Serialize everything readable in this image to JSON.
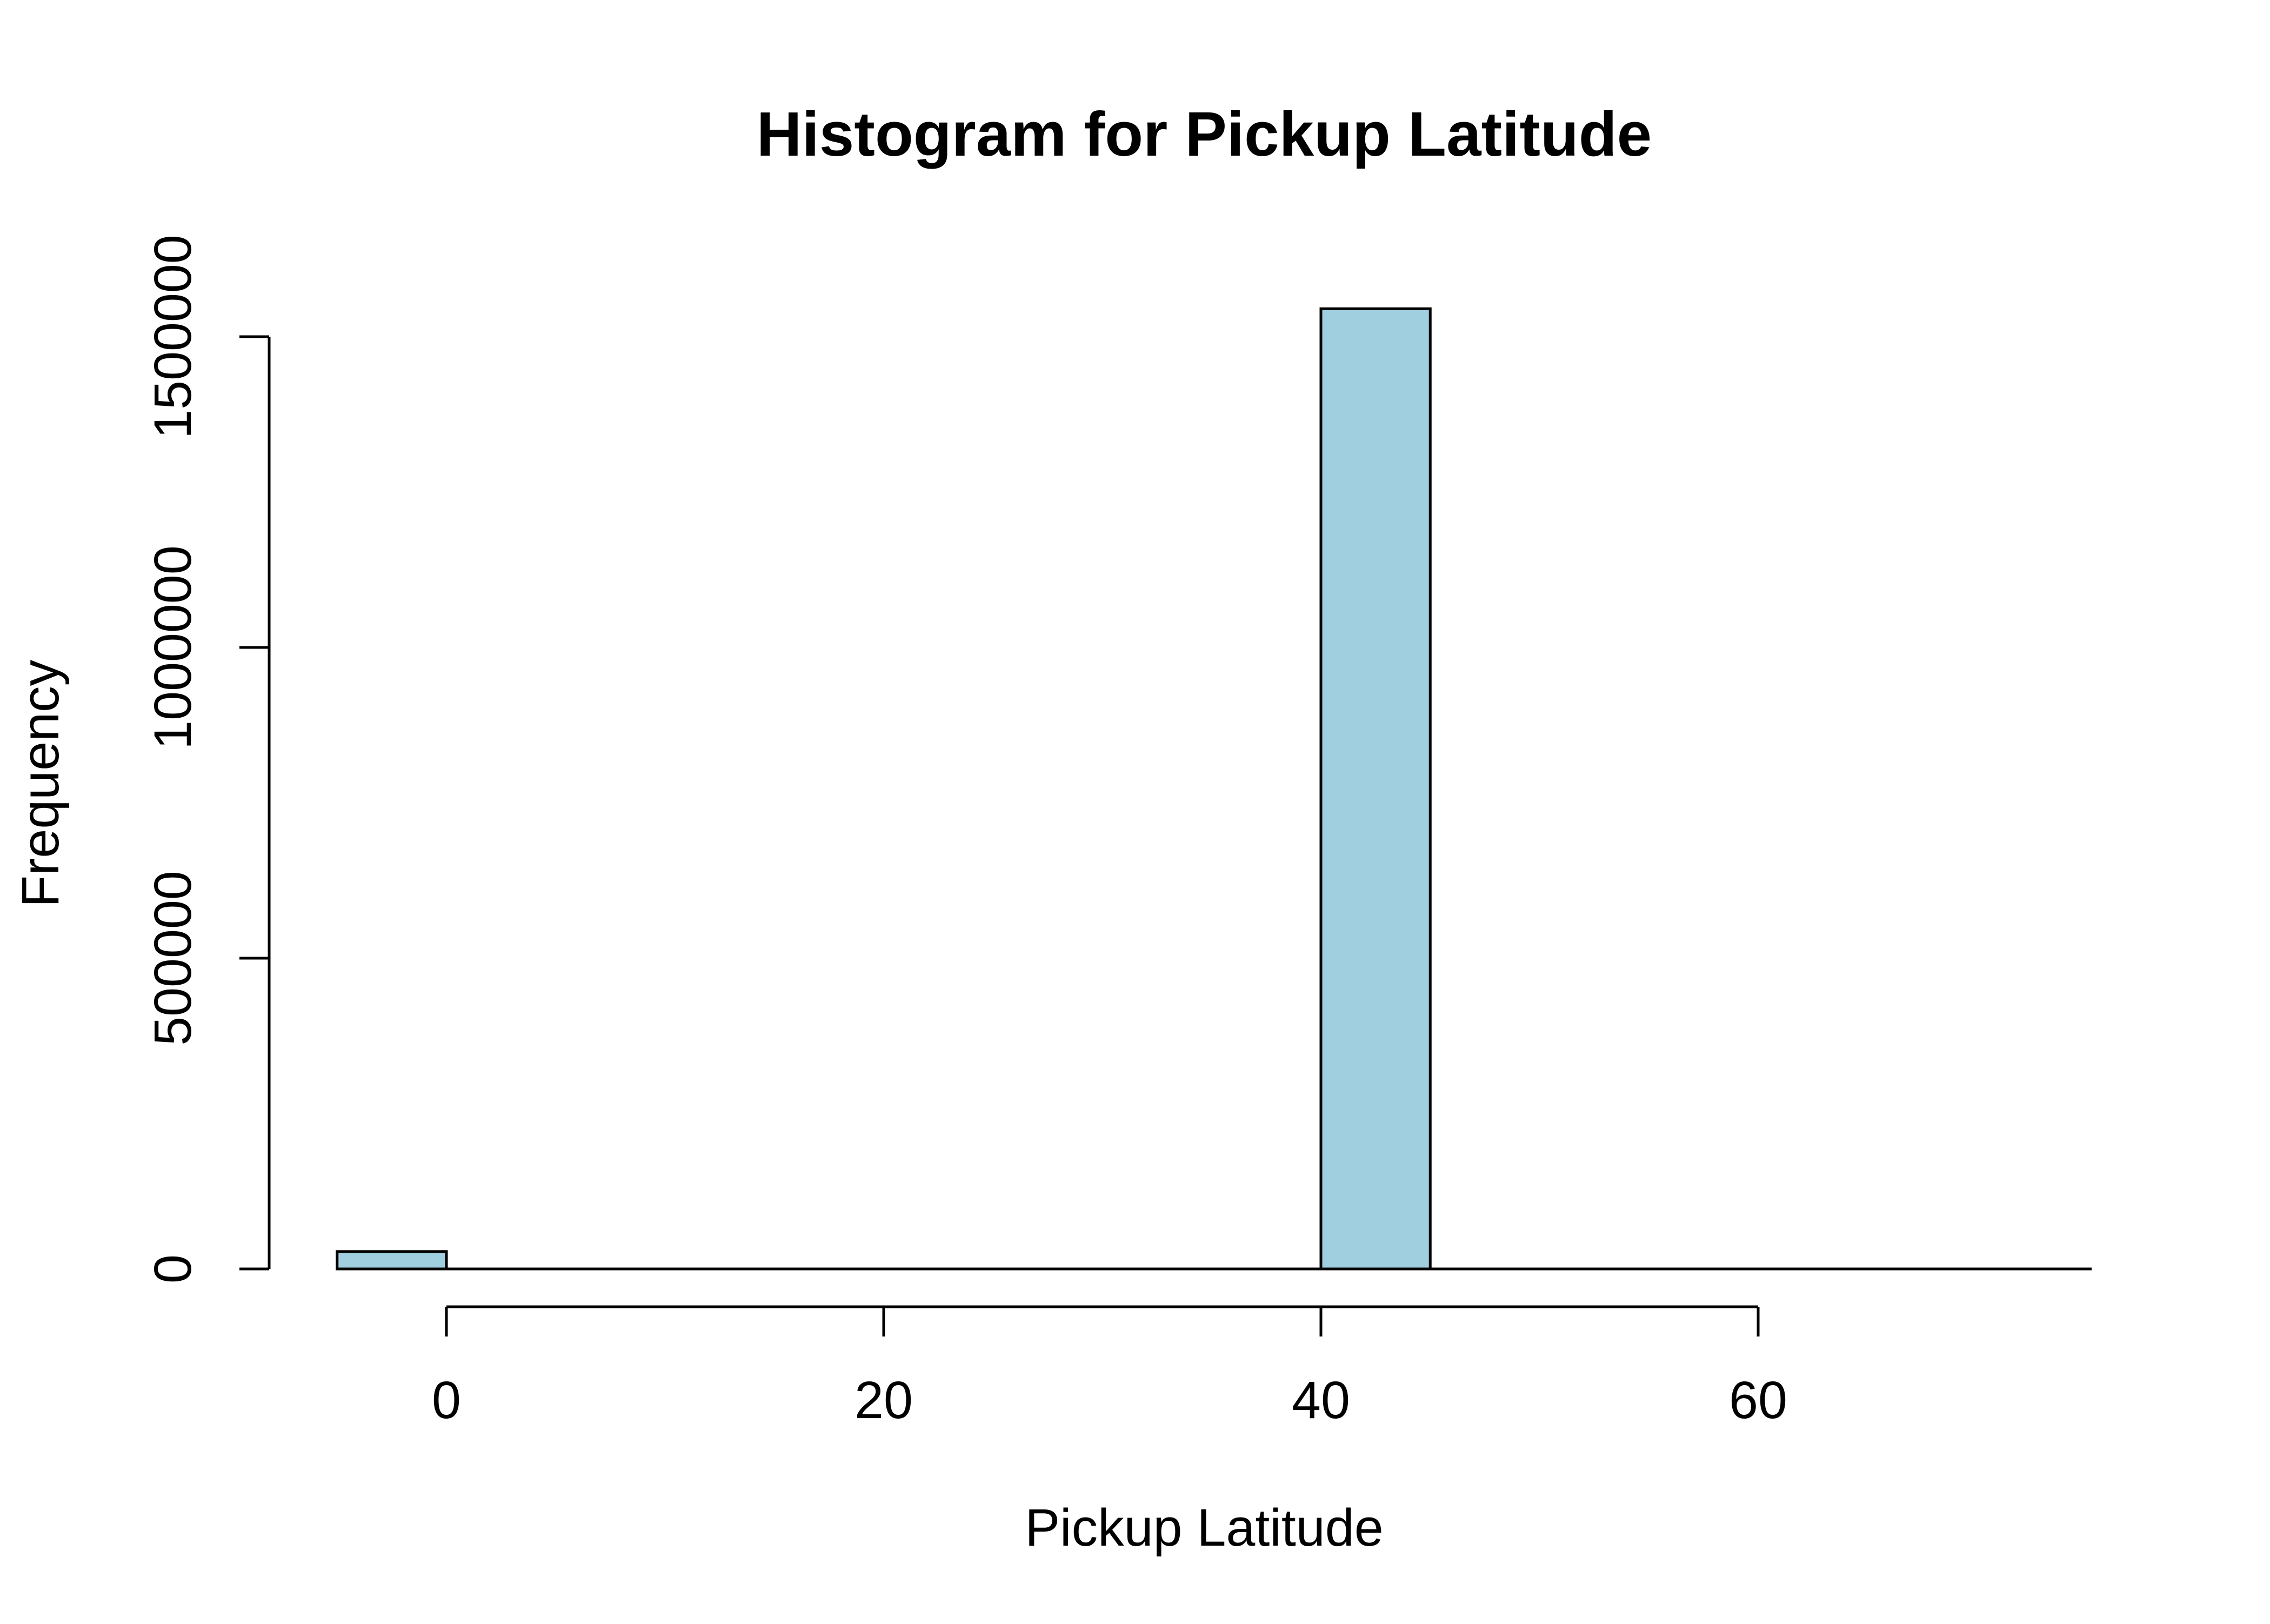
{
  "chart_data": {
    "type": "bar",
    "title": "Histogram for Pickup Latitude",
    "xlabel": "Pickup Latitude",
    "ylabel": "Frequency",
    "bins": [
      {
        "start": -5,
        "end": 0,
        "count": 28000
      },
      {
        "start": 0,
        "end": 5,
        "count": 0
      },
      {
        "start": 5,
        "end": 10,
        "count": 0
      },
      {
        "start": 10,
        "end": 15,
        "count": 0
      },
      {
        "start": 15,
        "end": 20,
        "count": 0
      },
      {
        "start": 20,
        "end": 25,
        "count": 0
      },
      {
        "start": 25,
        "end": 30,
        "count": 0
      },
      {
        "start": 30,
        "end": 35,
        "count": 0
      },
      {
        "start": 35,
        "end": 40,
        "count": 0
      },
      {
        "start": 40,
        "end": 45,
        "count": 1545000
      },
      {
        "start": 45,
        "end": 50,
        "count": 0
      },
      {
        "start": 50,
        "end": 55,
        "count": 0
      },
      {
        "start": 55,
        "end": 60,
        "count": 0
      },
      {
        "start": 60,
        "end": 65,
        "count": 0
      },
      {
        "start": 65,
        "end": 70,
        "count": 0
      },
      {
        "start": 70,
        "end": 75,
        "count": 0
      }
    ],
    "xlim": [
      -5,
      75
    ],
    "ylim": [
      0,
      1500000
    ],
    "x_ticks": [
      0,
      20,
      40,
      60
    ],
    "y_ticks": [
      0,
      500000,
      1000000,
      1500000
    ],
    "x_tick_labels": [
      "0",
      "20",
      "40",
      "60"
    ],
    "y_tick_labels": [
      "0",
      "500000",
      "1000000",
      "1500000"
    ],
    "bar_color": "#a0cfe0",
    "grid": false,
    "legend": "none"
  }
}
